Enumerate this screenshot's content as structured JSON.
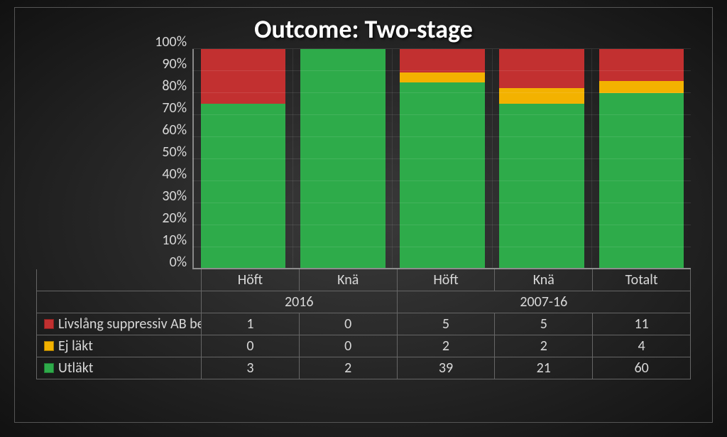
{
  "title": "Outcome: Two-stage",
  "chart": {
    "type": "stacked-bar-100pct",
    "ylabel_suffix": "%",
    "ylim": [
      0,
      100
    ],
    "ytick_step": 10,
    "background": "radial-dark",
    "grid_color": "rgba(255,255,255,0.10)",
    "axis_color": "#888888",
    "bar_width_pct": 86,
    "series": [
      {
        "key": "utlakt",
        "label": "Utläkt",
        "color": "#2eab4a"
      },
      {
        "key": "ejlakt",
        "label": "Ej läkt",
        "color": "#f3b200"
      },
      {
        "key": "livslang",
        "label": "Livslång suppressiv AB be",
        "color": "#c23030"
      }
    ],
    "groups": [
      {
        "label": "2016",
        "cats": [
          "Höft",
          "Knä"
        ]
      },
      {
        "label": "2007-16",
        "cats": [
          "Höft",
          "Knä",
          "Totalt"
        ]
      }
    ],
    "columns": [
      "Höft",
      "Knä",
      "Höft",
      "Knä",
      "Totalt"
    ],
    "data": {
      "livslang": [
        1,
        0,
        5,
        5,
        11
      ],
      "ejlakt": [
        0,
        0,
        2,
        2,
        4
      ],
      "utlakt": [
        3,
        2,
        39,
        21,
        60
      ]
    },
    "tick_fontsize": 20,
    "label_fontsize": 20,
    "title_fontsize": 36
  }
}
